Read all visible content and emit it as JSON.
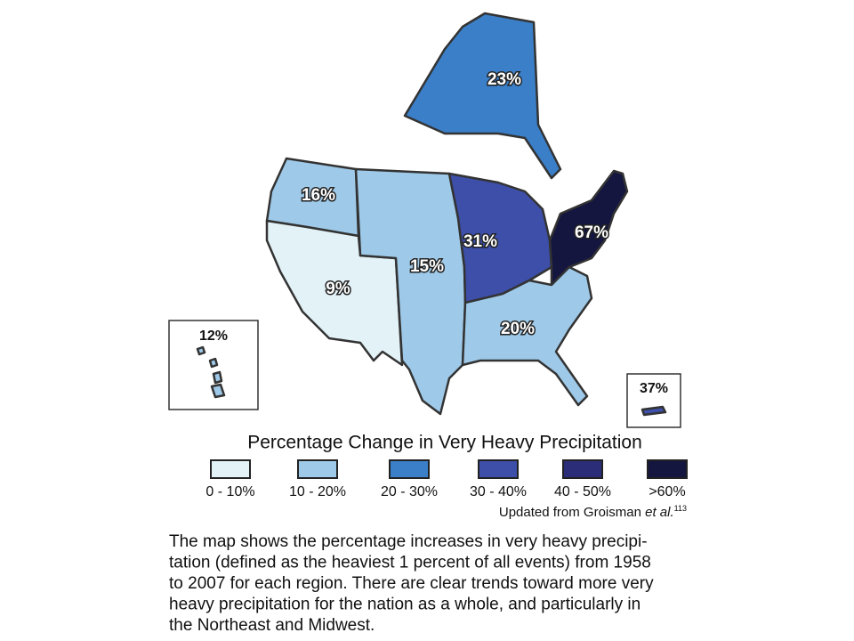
{
  "map": {
    "regions": [
      {
        "name": "Alaska",
        "label": "23%",
        "color": "#3a7fc7"
      },
      {
        "name": "Northwest",
        "label": "16%",
        "color": "#9ec9e8"
      },
      {
        "name": "Southwest",
        "label": "9%",
        "color": "#e2f2f7"
      },
      {
        "name": "Great Plains",
        "label": "15%",
        "color": "#9ec9e8"
      },
      {
        "name": "Midwest",
        "label": "31%",
        "color": "#3d4fa8"
      },
      {
        "name": "Northeast",
        "label": "67%",
        "color": "#141640"
      },
      {
        "name": "Southeast",
        "label": "20%",
        "color": "#9ec9e8"
      },
      {
        "name": "Hawaii",
        "label": "12%",
        "color": "#9ec9e8"
      },
      {
        "name": "Puerto Rico",
        "label": "37%",
        "color": "#3d4fa8"
      }
    ]
  },
  "legend": {
    "title": "Percentage Change in Very Heavy Precipitation",
    "items": [
      {
        "label": "0 - 10%",
        "color": "#e2f2f7"
      },
      {
        "label": "10 - 20%",
        "color": "#9ec9e8"
      },
      {
        "label": "20 - 30%",
        "color": "#3a7fc7"
      },
      {
        "label": "30 - 40%",
        "color": "#3d4fa8"
      },
      {
        "label": "40 - 50%",
        "color": "#2c2d78"
      },
      {
        "label": ">60%",
        "color": "#141640"
      }
    ]
  },
  "source": {
    "prefix": "Updated from Groisman ",
    "italic": "et al.",
    "sup": "113"
  },
  "caption": {
    "lines": [
      "The map shows the percentage increases in very heavy precipi-",
      "tation (defined as the heaviest 1 percent of all events) from 1958",
      "to 2007 for each region. There are clear trends toward more very",
      "heavy precipitation for the nation as a whole, and particularly in",
      "the Northeast and Midwest."
    ]
  }
}
